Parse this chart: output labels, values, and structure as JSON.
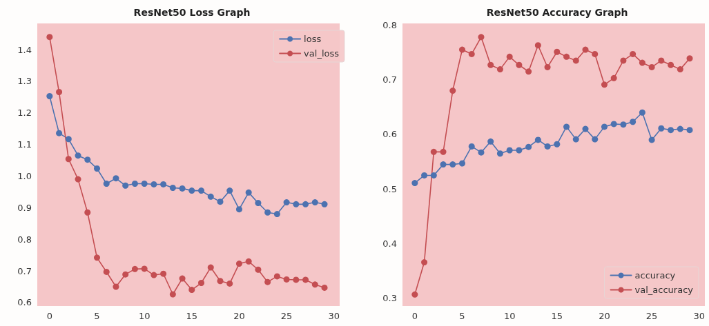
{
  "chart_data": [
    {
      "type": "line",
      "title": "ResNet50 Loss Graph",
      "x": [
        0,
        1,
        2,
        3,
        4,
        5,
        6,
        7,
        8,
        9,
        10,
        11,
        12,
        13,
        14,
        15,
        16,
        17,
        18,
        19,
        20,
        21,
        22,
        23,
        24,
        25,
        26,
        27,
        28,
        29
      ],
      "series": [
        {
          "name": "loss",
          "color": "#4c72b0",
          "values": [
            1.253,
            1.136,
            1.117,
            1.065,
            1.052,
            1.024,
            0.976,
            0.993,
            0.97,
            0.976,
            0.976,
            0.974,
            0.974,
            0.963,
            0.961,
            0.954,
            0.954,
            0.935,
            0.919,
            0.954,
            0.895,
            0.948,
            0.915,
            0.885,
            0.88,
            0.917,
            0.911,
            0.911,
            0.917,
            0.911
          ]
        },
        {
          "name": "val_loss",
          "color": "#c44e52",
          "values": [
            1.44,
            1.266,
            1.054,
            0.99,
            0.885,
            0.742,
            0.697,
            0.65,
            0.689,
            0.706,
            0.707,
            0.687,
            0.691,
            0.626,
            0.676,
            0.64,
            0.662,
            0.711,
            0.668,
            0.66,
            0.723,
            0.73,
            0.704,
            0.665,
            0.683,
            0.673,
            0.672,
            0.672,
            0.657,
            0.647
          ]
        }
      ],
      "xlim": [
        -1.3,
        30.6
      ],
      "xticks": [
        0,
        5,
        10,
        15,
        20,
        25,
        30
      ],
      "ylim": [
        0.589,
        1.483
      ],
      "yticks": [
        0.6,
        0.7,
        0.8,
        0.9,
        {
          "value": 1,
          "label": "1.0"
        },
        1.1,
        1.2,
        1.3,
        1.4
      ],
      "grid": false,
      "legend": "top right",
      "marker": "circle",
      "line_style": "solid"
    },
    {
      "type": "line",
      "title": "ResNet50 Accuracy Graph",
      "x": [
        0,
        1,
        2,
        3,
        4,
        5,
        6,
        7,
        8,
        9,
        10,
        11,
        12,
        13,
        14,
        15,
        16,
        17,
        18,
        19,
        20,
        21,
        22,
        23,
        24,
        25,
        26,
        27,
        28,
        29
      ],
      "series": [
        {
          "name": "accuracy",
          "color": "#4c72b0",
          "values": [
            0.511,
            0.525,
            0.525,
            0.545,
            0.545,
            0.547,
            0.578,
            0.567,
            0.587,
            0.565,
            0.571,
            0.571,
            0.577,
            0.59,
            0.578,
            0.582,
            0.614,
            0.591,
            0.61,
            0.591,
            0.614,
            0.619,
            0.618,
            0.623,
            0.64,
            0.59,
            0.611,
            0.608,
            0.61,
            0.608
          ]
        },
        {
          "name": "val_accuracy",
          "color": "#c44e52",
          "values": [
            0.307,
            0.366,
            0.568,
            0.568,
            0.68,
            0.755,
            0.747,
            0.778,
            0.727,
            0.719,
            0.742,
            0.727,
            0.715,
            0.763,
            0.723,
            0.751,
            0.742,
            0.735,
            0.755,
            0.747,
            0.691,
            0.703,
            0.735,
            0.747,
            0.731,
            0.723,
            0.735,
            0.727,
            0.719,
            0.739
          ]
        }
      ],
      "xlim": [
        -1.3,
        30.6
      ],
      "xticks": [
        0,
        5,
        10,
        15,
        20,
        25,
        30
      ],
      "ylim": [
        0.286,
        0.803
      ],
      "yticks": [
        0.3,
        0.4,
        0.5,
        0.6,
        0.7,
        0.8
      ],
      "grid": false,
      "legend": "bottom right",
      "marker": "circle",
      "line_style": "solid"
    }
  ]
}
